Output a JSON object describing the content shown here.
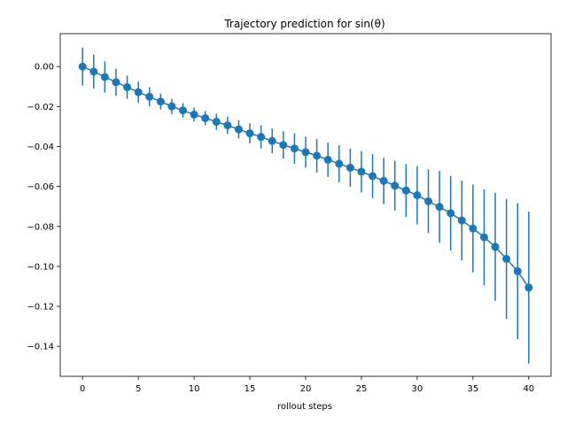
{
  "chart_data": {
    "type": "line",
    "title": "Trajectory prediction for sin(θ)",
    "xlabel": "rollout steps",
    "ylabel": "",
    "xlim": [
      -2,
      42
    ],
    "ylim": [
      -0.155,
      0.0165
    ],
    "xticks": [
      0,
      5,
      10,
      15,
      20,
      25,
      30,
      35,
      40
    ],
    "yticks": [
      0.0,
      -0.02,
      -0.04,
      -0.06,
      -0.08,
      -0.1,
      -0.12,
      -0.14
    ],
    "ytick_labels": [
      "0.00",
      "−0.02",
      "−0.04",
      "−0.06",
      "−0.08",
      "−0.10",
      "−0.12",
      "−0.14"
    ],
    "grid": false,
    "legend": "none",
    "color": "#1f77b4",
    "series": [
      {
        "x": [
          0,
          1,
          2,
          3,
          4,
          5,
          6,
          7,
          8,
          9,
          10,
          11,
          12,
          13,
          14,
          15,
          16,
          17,
          18,
          19,
          20,
          21,
          22,
          23,
          24,
          25,
          26,
          27,
          28,
          29,
          30,
          31,
          32,
          33,
          34,
          35,
          36,
          37,
          38,
          39,
          40
        ],
        "y": [
          0.0,
          -0.0025,
          -0.0052,
          -0.0078,
          -0.0103,
          -0.0128,
          -0.0151,
          -0.0175,
          -0.0199,
          -0.0219,
          -0.024,
          -0.0258,
          -0.0276,
          -0.0294,
          -0.0314,
          -0.0334,
          -0.0352,
          -0.0372,
          -0.0392,
          -0.041,
          -0.0428,
          -0.0446,
          -0.0466,
          -0.0486,
          -0.0506,
          -0.0526,
          -0.0548,
          -0.0572,
          -0.0596,
          -0.062,
          -0.0644,
          -0.0674,
          -0.0702,
          -0.0734,
          -0.077,
          -0.081,
          -0.0854,
          -0.0902,
          -0.0962,
          -0.1024,
          -0.1106
        ],
        "yerr": [
          0.0095,
          0.0085,
          0.0078,
          0.0068,
          0.0058,
          0.0052,
          0.0048,
          0.004,
          0.0038,
          0.0036,
          0.0035,
          0.0036,
          0.004,
          0.0044,
          0.0046,
          0.005,
          0.0058,
          0.0062,
          0.0068,
          0.0076,
          0.0078,
          0.0084,
          0.0086,
          0.0092,
          0.0096,
          0.0104,
          0.011,
          0.0116,
          0.0124,
          0.0132,
          0.0146,
          0.016,
          0.018,
          0.0186,
          0.02,
          0.022,
          0.024,
          0.027,
          0.03,
          0.034,
          0.038
        ]
      }
    ]
  }
}
